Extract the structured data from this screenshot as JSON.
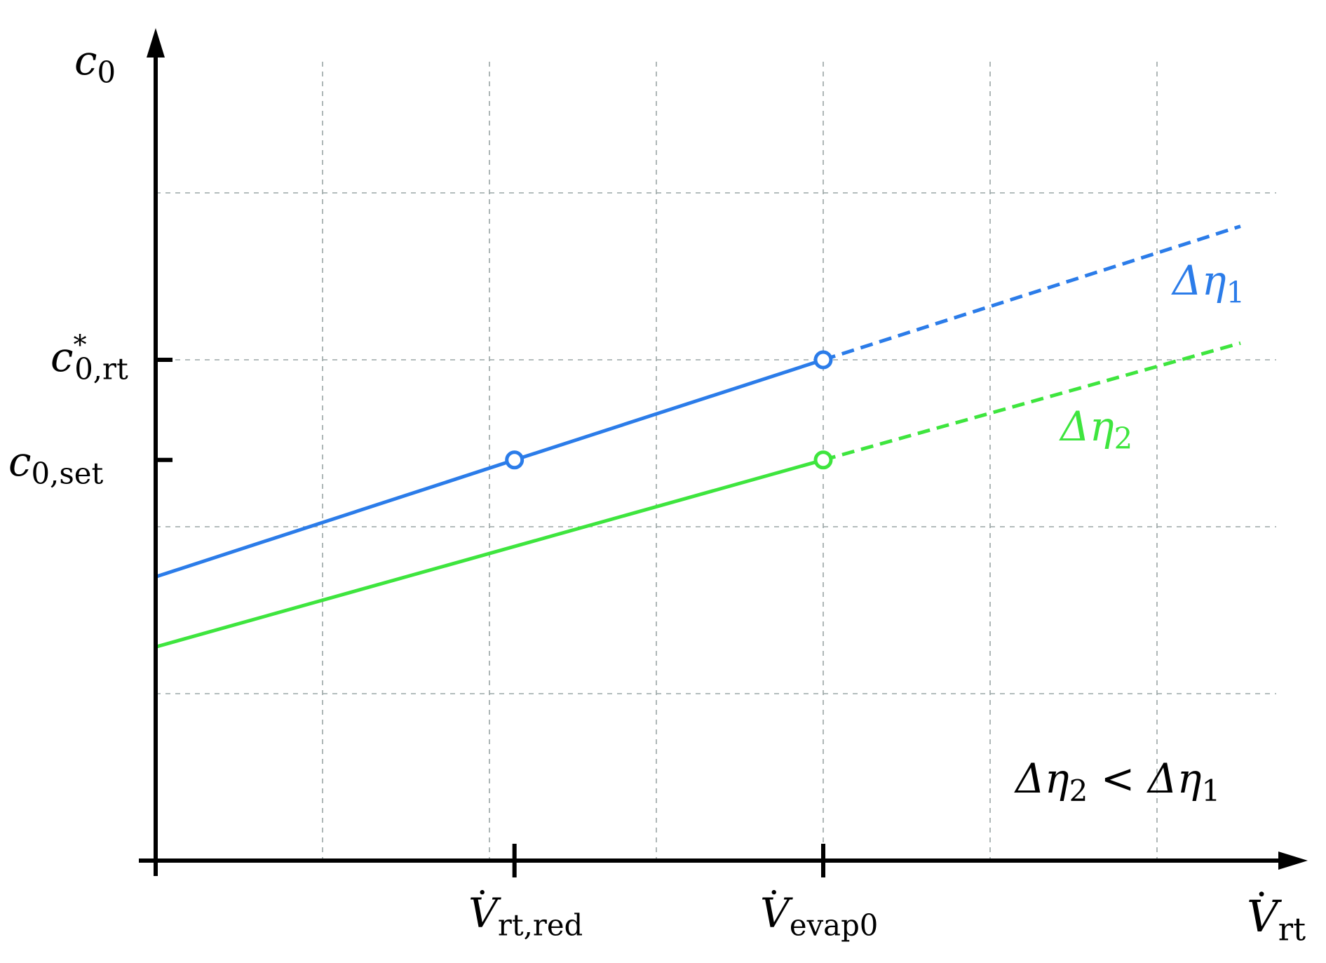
{
  "chart_data": {
    "type": "line",
    "title": "",
    "x_axis": {
      "symbol": "V",
      "subscript": "rt",
      "dot": true,
      "range": [
        0,
        7
      ],
      "ticks": [
        {
          "value": 2.15,
          "symbol": "V",
          "subscript": "rt,red",
          "dot": true
        },
        {
          "value": 4,
          "symbol": "V",
          "subscript": "evap0",
          "dot": true
        }
      ]
    },
    "y_axis": {
      "symbol": "c",
      "subscript": "0",
      "range": [
        0,
        5
      ],
      "ticks": [
        {
          "value": 2.4,
          "symbol": "c",
          "subscript": "0,set",
          "superscript": ""
        },
        {
          "value": 3,
          "symbol": "c",
          "subscript": "0,rt",
          "superscript": "*"
        }
      ]
    },
    "grid": {
      "on": true,
      "x_step": 1,
      "y_step": 1,
      "x_max": 6.5,
      "y_max": 4
    },
    "series": [
      {
        "name": "Δη1",
        "label_main": "Δη",
        "label_sub": "1",
        "color": "#2b7ce9",
        "x": [
          0,
          2.15,
          4,
          6.5
        ],
        "y": [
          1.7,
          2.4,
          3,
          3.8
        ],
        "solid_until_x": 4,
        "markers": [
          {
            "x": 2.15,
            "y": 2.4
          },
          {
            "x": 4,
            "y": 3
          }
        ]
      },
      {
        "name": "Δη2",
        "label_main": "Δη",
        "label_sub": "2",
        "color": "#3ee53e",
        "x": [
          0,
          4,
          6.5
        ],
        "y": [
          1.28,
          2.4,
          3.1
        ],
        "solid_until_x": 4,
        "markers": [
          {
            "x": 4,
            "y": 2.4
          }
        ]
      }
    ],
    "annotation": {
      "left_main": "Δη",
      "left_sub": "2",
      "relation": "<",
      "right_main": "Δη",
      "right_sub": "1"
    }
  }
}
